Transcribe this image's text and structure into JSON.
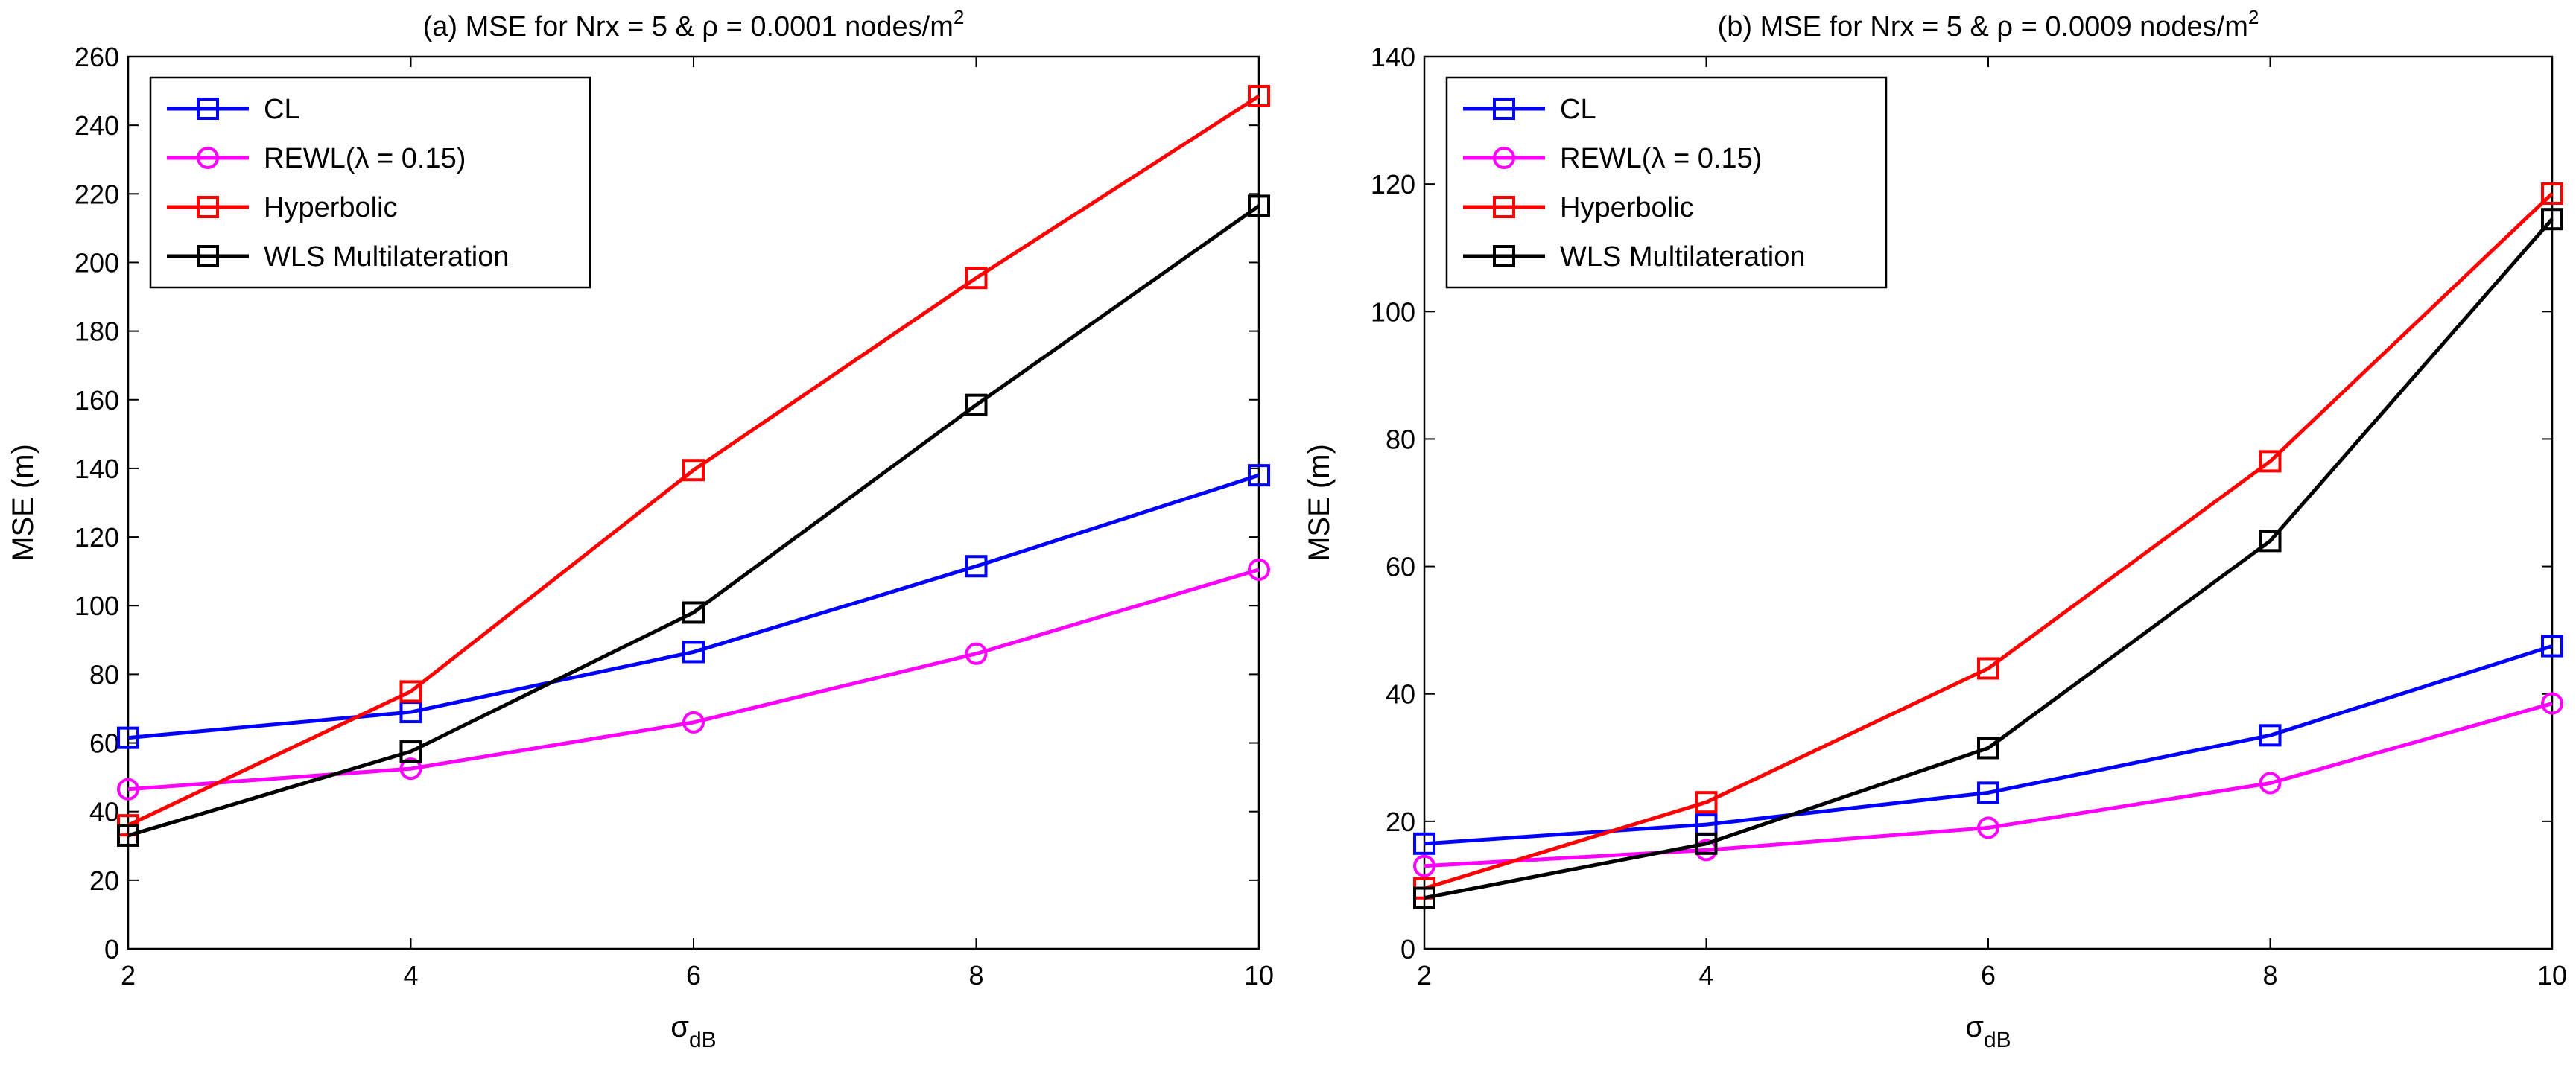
{
  "chart_data": [
    {
      "type": "line",
      "title_prefix": "(a) MSE for Nrx = 5 & ρ = 0.0001 nodes/m",
      "title_sup": "2",
      "xlabel_symbol": "σ",
      "xlabel_sub": "dB",
      "ylabel": "MSE (m)",
      "x": [
        2,
        4,
        6,
        8,
        10
      ],
      "xlim": [
        2,
        10
      ],
      "ylim": [
        0,
        260
      ],
      "xticks": [
        2,
        4,
        6,
        8,
        10
      ],
      "yticks": [
        0,
        20,
        40,
        60,
        80,
        100,
        120,
        140,
        160,
        180,
        200,
        220,
        240,
        260
      ],
      "legend_position": "top-left",
      "series": [
        {
          "name": "CL",
          "color": "#0000ff",
          "marker": "square",
          "values": [
            61.5,
            69,
            86.5,
            111.5,
            138
          ]
        },
        {
          "name": "REWL(λ = 0.15)",
          "color": "#ff00ff",
          "marker": "circle",
          "values": [
            46.5,
            52.5,
            66,
            86,
            110.5
          ]
        },
        {
          "name": "Hyperbolic",
          "color": "#ff0000",
          "marker": "square",
          "values": [
            36,
            75,
            139.5,
            195.5,
            248.5
          ]
        },
        {
          "name": "WLS Multilateration",
          "color": "#000000",
          "marker": "square",
          "values": [
            33,
            57.5,
            98,
            158.5,
            216.5
          ]
        }
      ]
    },
    {
      "type": "line",
      "title_prefix": "(b) MSE for Nrx = 5 & ρ = 0.0009 nodes/m",
      "title_sup": "2",
      "xlabel_symbol": "σ",
      "xlabel_sub": "dB",
      "ylabel": "MSE (m)",
      "x": [
        2,
        4,
        6,
        8,
        10
      ],
      "xlim": [
        2,
        10
      ],
      "ylim": [
        0,
        140
      ],
      "xticks": [
        2,
        4,
        6,
        8,
        10
      ],
      "yticks": [
        0,
        20,
        40,
        60,
        80,
        100,
        120,
        140
      ],
      "legend_position": "top-left",
      "series": [
        {
          "name": "CL",
          "color": "#0000ff",
          "marker": "square",
          "values": [
            16.5,
            19.5,
            24.5,
            33.5,
            47.5
          ]
        },
        {
          "name": "REWL(λ = 0.15)",
          "color": "#ff00ff",
          "marker": "circle",
          "values": [
            13,
            15.5,
            19,
            26,
            38.5
          ]
        },
        {
          "name": "Hyperbolic",
          "color": "#ff0000",
          "marker": "square",
          "values": [
            9.5,
            23,
            44,
            76.5,
            118.5
          ]
        },
        {
          "name": "WLS Multilateration",
          "color": "#000000",
          "marker": "square",
          "values": [
            8,
            16.5,
            31.5,
            64,
            114.5
          ]
        }
      ]
    }
  ]
}
